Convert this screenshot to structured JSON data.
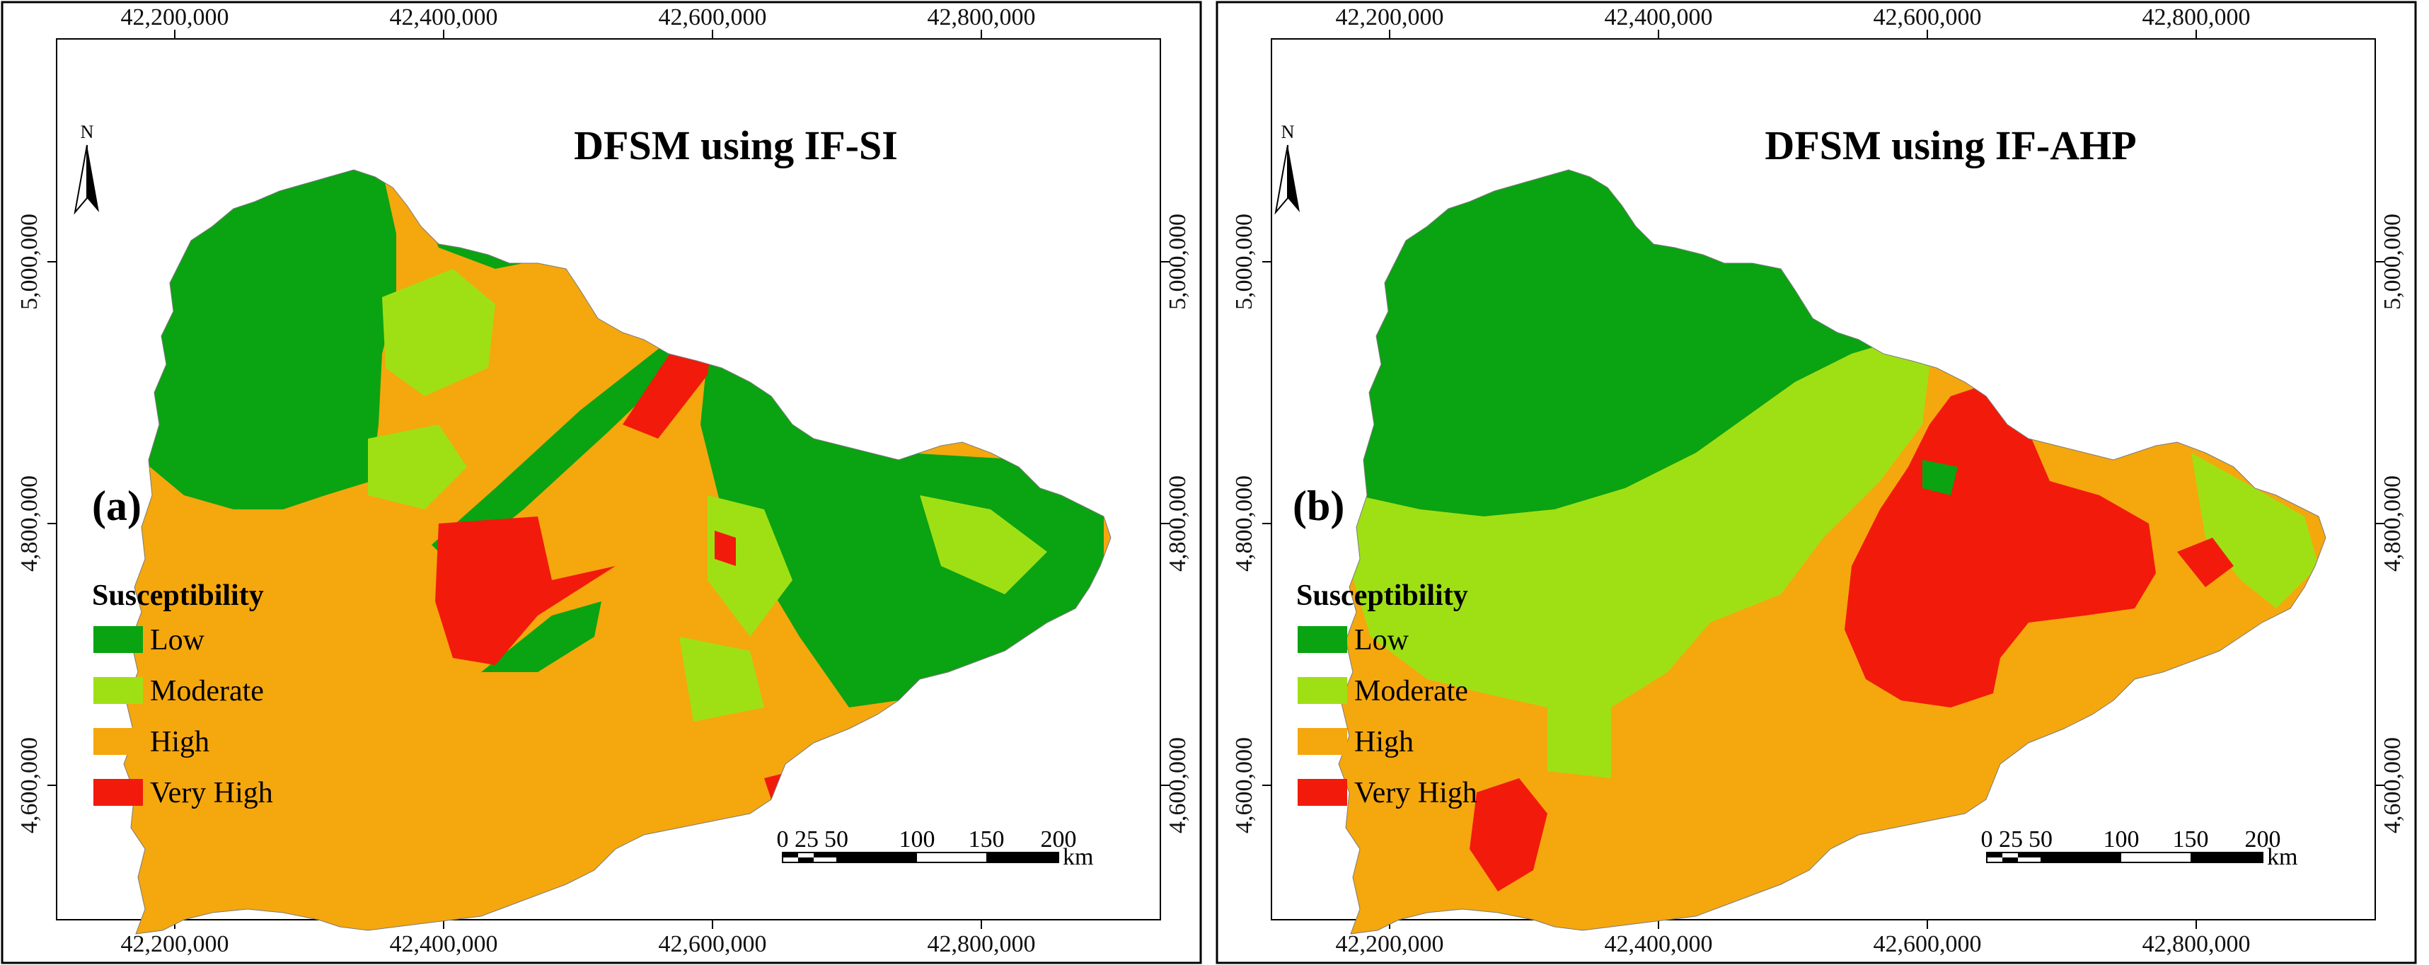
{
  "colors": {
    "low": "#0aa312",
    "moderate": "#9fe015",
    "high": "#f5a70e",
    "very_high": "#f21a0b"
  },
  "panels": [
    {
      "title": "DFSM using IF-SI",
      "label": "(a)",
      "legend_title": "Susceptibility",
      "legend": [
        "Low",
        "Moderate",
        "High",
        "Very High"
      ],
      "x_ticks": [
        "42,200,000",
        "42,400,000",
        "42,600,000",
        "42,800,000"
      ],
      "y_ticks": [
        "5,000,000",
        "4,800,000",
        "4,600,000"
      ],
      "north": "N",
      "scale_ticks": [
        "0",
        "25",
        "50",
        "100",
        "150",
        "200"
      ],
      "scale_unit": "km"
    },
    {
      "title": "DFSM using IF-AHP",
      "label": "(b)",
      "legend_title": "Susceptibility",
      "legend": [
        "Low",
        "Moderate",
        "High",
        "Very High"
      ],
      "x_ticks": [
        "42,200,000",
        "42,400,000",
        "42,600,000",
        "42,800,000"
      ],
      "y_ticks": [
        "5,000,000",
        "4,800,000",
        "4,600,000"
      ],
      "north": "N",
      "scale_ticks": [
        "0",
        "25",
        "50",
        "100",
        "150",
        "200"
      ],
      "scale_unit": "km"
    }
  ]
}
